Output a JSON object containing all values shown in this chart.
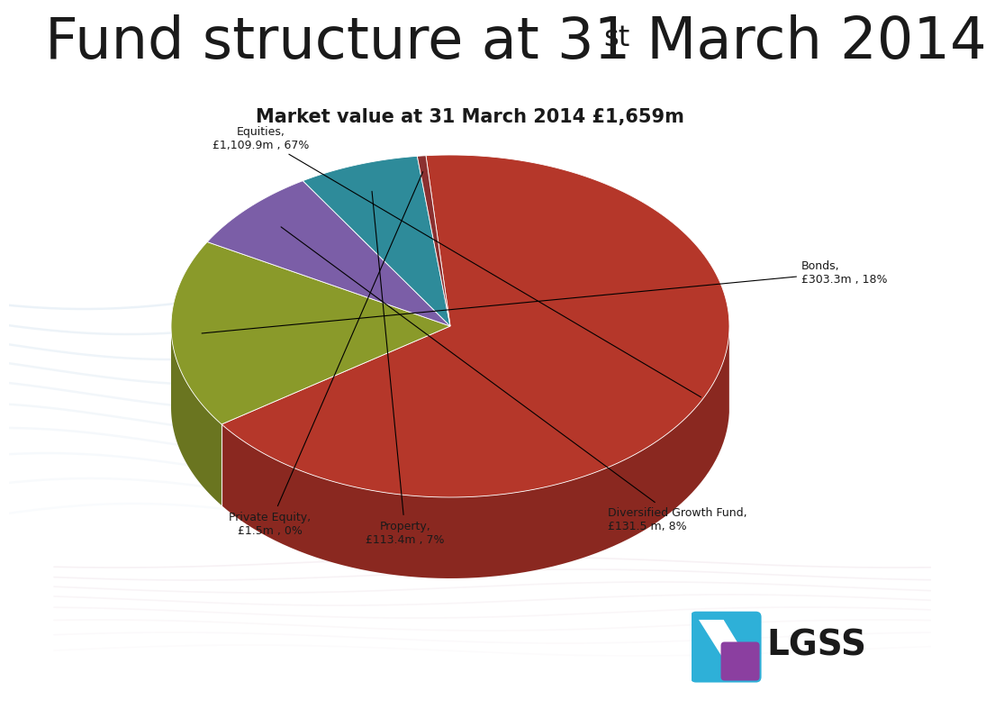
{
  "title_pre": "Fund structure at 31",
  "title_super": "st",
  "title_post": " March 2014",
  "subtitle": "Market value at 31 March 2014 £1,659m",
  "slices": [
    {
      "label": "Equities,\n£1,109.9m , 67%",
      "value": 67,
      "color": "#B5372A",
      "side_color": "#8A2820"
    },
    {
      "label": "Bonds,\n£303.3m , 18%",
      "value": 18,
      "color": "#8A9A2A",
      "side_color": "#6A7520"
    },
    {
      "label": "Diversified Growth Fund,\n£131.5 m, 8%",
      "value": 8,
      "color": "#7B5EA7",
      "side_color": "#5A4480"
    },
    {
      "label": "Property,\n£113.4m , 7%",
      "value": 7,
      "color": "#2E8B9A",
      "side_color": "#1E6575"
    },
    {
      "label": "Private Equity,\n£1.5m , 0%",
      "value": 0.5,
      "color": "#8B3030",
      "side_color": "#6A2020"
    }
  ],
  "bg_color": "#FFFFFF",
  "font_color": "#1A1A1A",
  "title_fontsize": 46,
  "subtitle_fontsize": 15,
  "label_fontsize": 9
}
